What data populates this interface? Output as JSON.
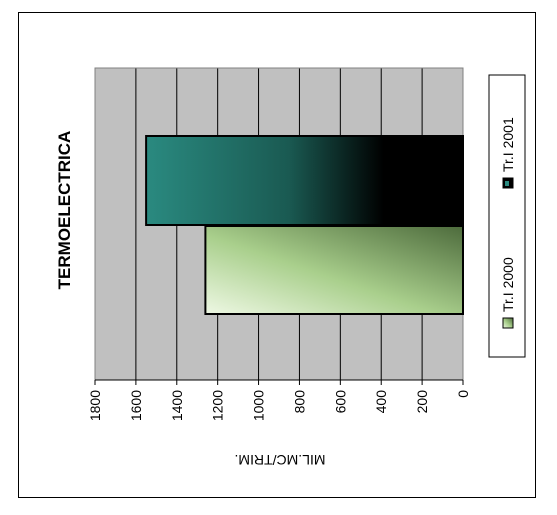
{
  "chart_data": {
    "type": "bar",
    "orientation": "rotated-90-ccw",
    "title": "TERMOELECTRICA",
    "categories": [
      ""
    ],
    "series": [
      {
        "name": "Tr.I 2000",
        "values": [
          1260
        ]
      },
      {
        "name": "Tr.I 2001",
        "values": [
          1550
        ]
      }
    ],
    "ylabel": "MIL.MC/TRIM.",
    "xlabel": "",
    "ylim": [
      0,
      1800
    ],
    "yticks": [
      0,
      200,
      400,
      600,
      800,
      1000,
      1200,
      1400,
      1600,
      1800
    ],
    "grid": true,
    "legend_position": "right",
    "colors": {
      "plot_background": "#c0c0c0",
      "series_2000_light": "#e8f5d8",
      "series_2000_dark": "#4d6b3c",
      "series_2001_light": "#2a8a80",
      "series_2001_dark": "#000000"
    }
  }
}
